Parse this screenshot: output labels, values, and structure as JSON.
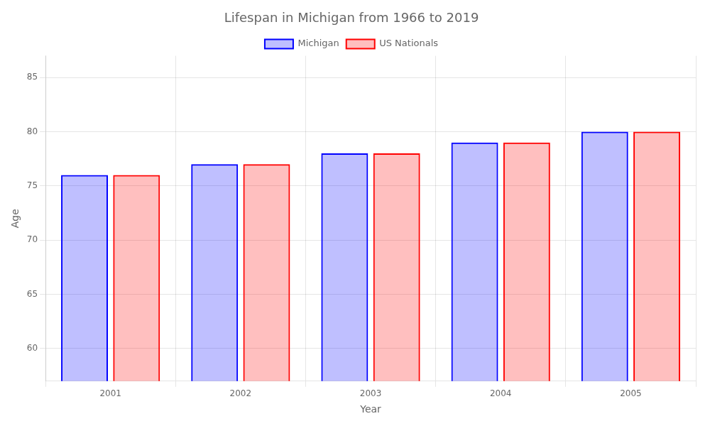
{
  "chart_data": {
    "type": "bar",
    "title": "Lifespan in Michigan from 1966 to 2019",
    "xlabel": "Year",
    "ylabel": "Age",
    "categories": [
      "2001",
      "2002",
      "2003",
      "2004",
      "2005"
    ],
    "series": [
      {
        "name": "Michigan",
        "color": "#0000ff",
        "values": [
          76,
          77,
          78,
          79,
          80
        ]
      },
      {
        "name": "US Nationals",
        "color": "#ff0000",
        "values": [
          76,
          77,
          78,
          79,
          80
        ]
      }
    ],
    "ylim": [
      57,
      87
    ],
    "yticks": [
      60,
      65,
      70,
      75,
      80,
      85
    ],
    "grid": true,
    "legend": "top"
  }
}
